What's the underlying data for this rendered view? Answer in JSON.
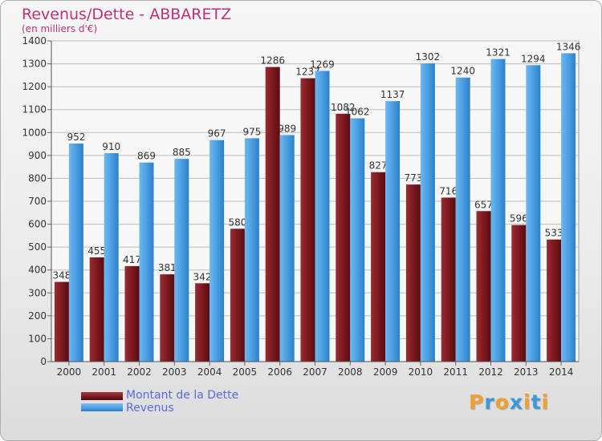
{
  "title": "Revenus/Dette - ABBARETZ",
  "subtitle": "(en milliers d'€)",
  "colors": {
    "debt": "#7a1a1f",
    "revenue": "#4a9ee2",
    "title": "#c0307a",
    "legend_text": "#5a6ad8",
    "grid": "#bdbdbd"
  },
  "chart_data": {
    "type": "bar",
    "categories": [
      "2000",
      "2001",
      "2002",
      "2003",
      "2004",
      "2005",
      "2006",
      "2007",
      "2008",
      "2009",
      "2010",
      "2011",
      "2012",
      "2013",
      "2014"
    ],
    "series": [
      {
        "name": "Montant de la Dette",
        "values": [
          348,
          455,
          417,
          381,
          342,
          580,
          1286,
          1237,
          1082,
          827,
          773,
          716,
          657,
          596,
          533
        ]
      },
      {
        "name": "Revenus",
        "values": [
          952,
          910,
          869,
          885,
          967,
          975,
          989,
          1269,
          1062,
          1137,
          1302,
          1240,
          1321,
          1294,
          1346
        ]
      }
    ],
    "ylim": [
      0,
      1400
    ],
    "yticks": [
      0,
      100,
      200,
      300,
      400,
      500,
      600,
      700,
      800,
      900,
      1000,
      1100,
      1200,
      1300,
      1400
    ],
    "grid": true,
    "legend_position": "bottom-left"
  },
  "legend": [
    {
      "label": "Montant de la Dette"
    },
    {
      "label": "Revenus"
    }
  ],
  "logo": {
    "letters": [
      "P",
      "r",
      "o",
      "x",
      "i",
      "t",
      "i"
    ],
    "colors": [
      "#f0a030",
      "#3a9ad8",
      "#f0a030",
      "#3a9ad8",
      "#f0a030",
      "#3a9ad8",
      "#f0a030"
    ]
  }
}
